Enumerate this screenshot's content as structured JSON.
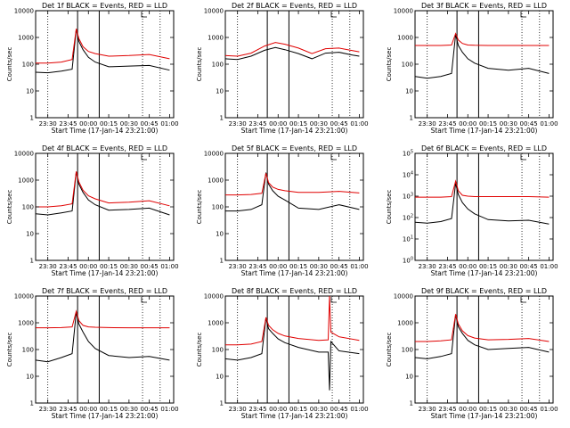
{
  "figure": {
    "panels_layout": "3x3 grid",
    "xlabel": "Start Time (17-Jan-14 23:21:00)",
    "ylabel": "Counts/sec",
    "colors": {
      "events": "#000000",
      "lld": "#e00000",
      "axes": "#000000",
      "background": "#ffffff"
    }
  },
  "chart_data": [
    {
      "type": "line",
      "detector": "1f",
      "title": "Det 1f BLACK = Events, RED = LLD",
      "x_ticks": [
        "23:30",
        "23:45",
        "00:00",
        "00:15",
        "00:30",
        "00:45",
        "01:00"
      ],
      "y_ticks": [
        "1",
        "10",
        "100",
        "1000",
        "10000"
      ],
      "y_scale": "log",
      "ylim": [
        1,
        10000
      ],
      "xlabel": "Start Time (17-Jan-14 23:21:00)",
      "ylabel": "Counts/sec",
      "solid_vlines": [
        "23:52",
        "00:08"
      ],
      "dotted_vlines": [
        "23:30",
        "00:40",
        "00:53"
      ],
      "series": [
        {
          "role": "events",
          "x": [
            "23:21",
            "23:30",
            "23:40",
            "23:48",
            "23:51",
            "23:53",
            "23:56",
            "00:00",
            "00:05",
            "00:15",
            "00:30",
            "00:45",
            "01:00"
          ],
          "values": [
            50,
            48,
            55,
            65,
            2000,
            700,
            350,
            180,
            120,
            80,
            85,
            90,
            60
          ]
        },
        {
          "role": "lld",
          "x": [
            "23:21",
            "23:30",
            "23:40",
            "23:48",
            "23:51",
            "23:53",
            "23:56",
            "00:00",
            "00:05",
            "00:15",
            "00:30",
            "00:45",
            "01:00"
          ],
          "values": [
            110,
            110,
            120,
            150,
            2100,
            900,
            450,
            300,
            250,
            200,
            210,
            230,
            160
          ]
        }
      ]
    },
    {
      "type": "line",
      "detector": "2f",
      "title": "Det 2f BLACK = Events, RED = LLD",
      "x_ticks": [
        "23:30",
        "23:45",
        "00:00",
        "00:15",
        "00:30",
        "00:45",
        "01:00"
      ],
      "y_ticks": [
        "1",
        "10",
        "100",
        "1000",
        "10000"
      ],
      "y_scale": "log",
      "ylim": [
        1,
        10000
      ],
      "xlabel": "Start Time (17-Jan-14 23:21:00)",
      "ylabel": "Counts/sec",
      "solid_vlines": [
        "23:52",
        "00:08"
      ],
      "dotted_vlines": [
        "23:30",
        "00:40",
        "00:53"
      ],
      "series": [
        {
          "role": "events",
          "x": [
            "23:21",
            "23:30",
            "23:40",
            "23:50",
            "23:58",
            "00:05",
            "00:15",
            "00:25",
            "00:35",
            "00:45",
            "00:55",
            "01:00"
          ],
          "values": [
            160,
            150,
            200,
            330,
            420,
            350,
            250,
            160,
            260,
            280,
            220,
            200
          ]
        },
        {
          "role": "lld",
          "x": [
            "23:21",
            "23:30",
            "23:40",
            "23:50",
            "23:58",
            "00:05",
            "00:15",
            "00:25",
            "00:35",
            "00:45",
            "00:55",
            "01:00"
          ],
          "values": [
            210,
            200,
            260,
            480,
            650,
            560,
            400,
            250,
            380,
            400,
            320,
            290
          ]
        }
      ]
    },
    {
      "type": "line",
      "detector": "3f",
      "title": "Det 3f BLACK = Events, RED = LLD",
      "x_ticks": [
        "23:30",
        "23:45",
        "00:00",
        "00:15",
        "00:30",
        "00:45",
        "01:00"
      ],
      "y_ticks": [
        "1",
        "10",
        "100",
        "1000",
        "10000"
      ],
      "y_scale": "log",
      "ylim": [
        1,
        10000
      ],
      "xlabel": "Start Time (17-Jan-14 23:21:00)",
      "ylabel": "Counts/sec",
      "solid_vlines": [
        "23:52",
        "00:08"
      ],
      "dotted_vlines": [
        "23:30",
        "00:40",
        "00:53"
      ],
      "series": [
        {
          "role": "events",
          "x": [
            "23:21",
            "23:30",
            "23:40",
            "23:48",
            "23:51",
            "23:53",
            "23:56",
            "00:00",
            "00:05",
            "00:15",
            "00:30",
            "00:45",
            "01:00"
          ],
          "values": [
            35,
            30,
            35,
            45,
            1300,
            500,
            280,
            160,
            110,
            70,
            60,
            70,
            45
          ]
        },
        {
          "role": "lld",
          "x": [
            "23:21",
            "23:30",
            "23:40",
            "23:48",
            "23:51",
            "23:53",
            "23:56",
            "00:00",
            "00:05",
            "00:15",
            "00:30",
            "00:45",
            "01:00"
          ],
          "values": [
            500,
            500,
            500,
            520,
            1400,
            800,
            600,
            520,
            510,
            500,
            500,
            500,
            500
          ]
        }
      ]
    },
    {
      "type": "line",
      "detector": "4f",
      "title": "Det 4f BLACK = Events, RED = LLD",
      "x_ticks": [
        "23:30",
        "23:45",
        "00:00",
        "00:15",
        "00:30",
        "00:45",
        "01:00"
      ],
      "y_ticks": [
        "1",
        "10",
        "100",
        "1000",
        "10000"
      ],
      "y_scale": "log",
      "ylim": [
        1,
        10000
      ],
      "xlabel": "Start Time (17-Jan-14 23:21:00)",
      "ylabel": "Counts/sec",
      "solid_vlines": [
        "23:52",
        "00:08"
      ],
      "dotted_vlines": [
        "23:30",
        "00:40",
        "00:53"
      ],
      "series": [
        {
          "role": "events",
          "x": [
            "23:21",
            "23:30",
            "23:40",
            "23:48",
            "23:51",
            "23:53",
            "23:56",
            "00:00",
            "00:05",
            "00:15",
            "00:30",
            "00:45",
            "01:00"
          ],
          "values": [
            55,
            50,
            60,
            70,
            2000,
            700,
            350,
            180,
            120,
            75,
            80,
            90,
            50
          ]
        },
        {
          "role": "lld",
          "x": [
            "23:21",
            "23:30",
            "23:40",
            "23:48",
            "23:51",
            "23:53",
            "23:56",
            "00:00",
            "00:05",
            "00:15",
            "00:30",
            "00:45",
            "01:00"
          ],
          "values": [
            100,
            100,
            110,
            130,
            2100,
            850,
            420,
            260,
            200,
            140,
            150,
            170,
            110
          ]
        }
      ]
    },
    {
      "type": "line",
      "detector": "5f",
      "title": "Det 5f BLACK = Events, RED = LLD",
      "x_ticks": [
        "23:30",
        "23:45",
        "00:00",
        "00:15",
        "00:30",
        "00:45",
        "01:00"
      ],
      "y_ticks": [
        "1",
        "10",
        "100",
        "1000",
        "10000"
      ],
      "y_scale": "log",
      "ylim": [
        1,
        10000
      ],
      "xlabel": "Start Time (17-Jan-14 23:21:00)",
      "ylabel": "Counts/sec",
      "solid_vlines": [
        "23:52",
        "00:08"
      ],
      "dotted_vlines": [
        "23:30",
        "00:40",
        "00:53"
      ],
      "series": [
        {
          "role": "events",
          "x": [
            "23:21",
            "23:30",
            "23:40",
            "23:48",
            "23:51",
            "23:53",
            "23:56",
            "00:00",
            "00:05",
            "00:15",
            "00:30",
            "00:45",
            "01:00"
          ],
          "values": [
            70,
            70,
            80,
            120,
            1900,
            700,
            400,
            250,
            180,
            90,
            80,
            120,
            80
          ]
        },
        {
          "role": "lld",
          "x": [
            "23:21",
            "23:30",
            "23:40",
            "23:48",
            "23:51",
            "23:53",
            "23:56",
            "00:00",
            "00:05",
            "00:15",
            "00:30",
            "00:45",
            "01:00"
          ],
          "values": [
            280,
            280,
            290,
            320,
            1800,
            800,
            550,
            450,
            400,
            350,
            350,
            380,
            330
          ]
        }
      ]
    },
    {
      "type": "line",
      "detector": "6f",
      "title": "Det 6f BLACK = Events, RED = LLD",
      "x_ticks": [
        "23:30",
        "23:45",
        "00:00",
        "00:15",
        "00:30",
        "00:45",
        "01:00"
      ],
      "y_ticks": [
        "10^0",
        "10^1",
        "10^2",
        "10^3",
        "10^4",
        "10^5"
      ],
      "y_scale": "log",
      "ylim": [
        1,
        100000
      ],
      "xlabel": "Start Time (17-Jan-14 23:21:00)",
      "ylabel": "Counts/sec",
      "solid_vlines": [
        "23:52",
        "00:08"
      ],
      "dotted_vlines": [
        "23:30",
        "00:40",
        "00:53"
      ],
      "series": [
        {
          "role": "events",
          "x": [
            "23:21",
            "23:30",
            "23:40",
            "23:48",
            "23:51",
            "23:53",
            "23:56",
            "00:00",
            "00:05",
            "00:15",
            "00:30",
            "00:45",
            "01:00"
          ],
          "values": [
            60,
            55,
            65,
            90,
            4000,
            1200,
            500,
            250,
            150,
            80,
            70,
            75,
            50
          ]
        },
        {
          "role": "lld",
          "x": [
            "23:21",
            "23:30",
            "23:40",
            "23:48",
            "23:51",
            "23:53",
            "23:56",
            "00:00",
            "00:05",
            "00:15",
            "00:30",
            "00:45",
            "01:00"
          ],
          "values": [
            900,
            900,
            900,
            950,
            5000,
            1800,
            1100,
            1000,
            950,
            950,
            950,
            950,
            900
          ]
        }
      ]
    },
    {
      "type": "line",
      "detector": "7f",
      "title": "Det 7f BLACK = Events, RED = LLD",
      "x_ticks": [
        "23:30",
        "23:45",
        "00:00",
        "00:15",
        "00:30",
        "00:45",
        "01:00"
      ],
      "y_ticks": [
        "1",
        "10",
        "100",
        "1000",
        "10000"
      ],
      "y_scale": "log",
      "ylim": [
        1,
        10000
      ],
      "xlabel": "Start Time (17-Jan-14 23:21:00)",
      "ylabel": "Counts/sec",
      "solid_vlines": [
        "23:52",
        "00:08"
      ],
      "dotted_vlines": [
        "23:30",
        "00:40",
        "00:53"
      ],
      "series": [
        {
          "role": "events",
          "x": [
            "23:21",
            "23:30",
            "23:40",
            "23:48",
            "23:51",
            "23:53",
            "23:56",
            "00:00",
            "00:05",
            "00:15",
            "00:30",
            "00:45",
            "01:00"
          ],
          "values": [
            40,
            35,
            50,
            70,
            2500,
            900,
            450,
            200,
            110,
            60,
            50,
            55,
            40
          ]
        },
        {
          "role": "lld",
          "x": [
            "23:21",
            "23:30",
            "23:40",
            "23:48",
            "23:51",
            "23:53",
            "23:56",
            "00:00",
            "00:05",
            "00:15",
            "00:30",
            "00:45",
            "01:00"
          ],
          "values": [
            650,
            650,
            660,
            700,
            2700,
            1200,
            800,
            700,
            680,
            660,
            650,
            650,
            650
          ]
        }
      ]
    },
    {
      "type": "line",
      "detector": "8f",
      "title": "Det 8f BLACK = Events, RED = LLD",
      "x_ticks": [
        "23:30",
        "23:45",
        "00:00",
        "00:15",
        "00:30",
        "00:45",
        "01:00"
      ],
      "y_ticks": [
        "1",
        "10",
        "100",
        "1000",
        "10000"
      ],
      "y_scale": "log",
      "ylim": [
        1,
        10000
      ],
      "xlabel": "Start Time (17-Jan-14 23:21:00)",
      "ylabel": "Counts/sec",
      "solid_vlines": [
        "23:52",
        "00:08"
      ],
      "dotted_vlines": [
        "23:30",
        "00:40",
        "00:53"
      ],
      "series": [
        {
          "role": "events",
          "x": [
            "23:21",
            "23:30",
            "23:40",
            "23:48",
            "23:51",
            "23:53",
            "23:56",
            "00:00",
            "00:05",
            "00:15",
            "00:30",
            "00:37",
            "00:38",
            "00:39",
            "00:45",
            "01:00"
          ],
          "values": [
            45,
            40,
            50,
            70,
            1500,
            600,
            400,
            250,
            180,
            120,
            80,
            80,
            3,
            200,
            90,
            70
          ]
        },
        {
          "role": "lld",
          "x": [
            "23:21",
            "23:30",
            "23:40",
            "23:48",
            "23:51",
            "23:53",
            "23:56",
            "00:00",
            "00:05",
            "00:15",
            "00:30",
            "00:37",
            "00:38",
            "00:39",
            "00:45",
            "01:00"
          ],
          "values": [
            150,
            150,
            160,
            200,
            1600,
            800,
            550,
            400,
            320,
            260,
            220,
            230,
            10000,
            450,
            300,
            220
          ]
        }
      ]
    },
    {
      "type": "line",
      "detector": "9f",
      "title": "Det 9f BLACK = Events, RED = LLD",
      "x_ticks": [
        "23:30",
        "23:45",
        "00:00",
        "00:15",
        "00:30",
        "00:45",
        "01:00"
      ],
      "y_ticks": [
        "1",
        "10",
        "100",
        "1000",
        "10000"
      ],
      "y_scale": "log",
      "ylim": [
        1,
        10000
      ],
      "xlabel": "Start Time (17-Jan-14 23:21:00)",
      "ylabel": "Counts/sec",
      "solid_vlines": [
        "23:52",
        "00:08"
      ],
      "dotted_vlines": [
        "23:30",
        "00:40",
        "00:53"
      ],
      "series": [
        {
          "role": "events",
          "x": [
            "23:21",
            "23:30",
            "23:40",
            "23:48",
            "23:51",
            "23:53",
            "23:56",
            "00:00",
            "00:05",
            "00:15",
            "00:30",
            "00:45",
            "01:00"
          ],
          "values": [
            50,
            45,
            55,
            70,
            2000,
            700,
            400,
            220,
            150,
            100,
            110,
            120,
            80
          ]
        },
        {
          "role": "lld",
          "x": [
            "23:21",
            "23:30",
            "23:40",
            "23:48",
            "23:51",
            "23:53",
            "23:56",
            "00:00",
            "00:05",
            "00:15",
            "00:30",
            "00:45",
            "01:00"
          ],
          "values": [
            200,
            200,
            210,
            230,
            2100,
            900,
            500,
            330,
            270,
            230,
            240,
            260,
            200
          ]
        }
      ]
    }
  ]
}
